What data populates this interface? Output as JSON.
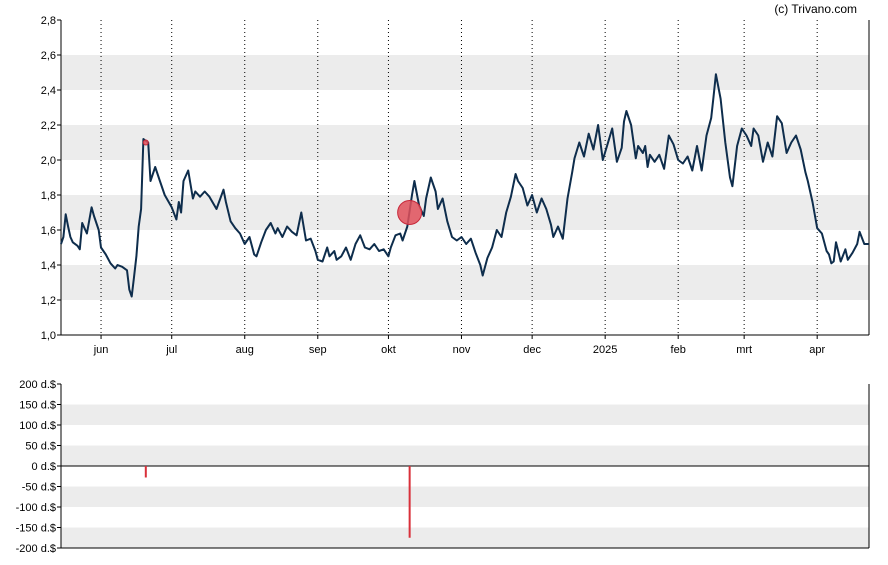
{
  "credit": "(c) Trivano.com",
  "colors": {
    "price_line": "#0e2d4c",
    "band": "#ececec",
    "marker": "#e0505a",
    "marker_stroke": "#c8283a",
    "volume_bar": "#d9303a"
  },
  "chart_data": [
    {
      "type": "line",
      "title": "",
      "xlabel": "",
      "ylabel": "",
      "ylim": [
        1.0,
        2.8
      ],
      "y_ticks": [
        "1,0",
        "1,2",
        "1,4",
        "1,6",
        "1,8",
        "2,0",
        "2,2",
        "2,4",
        "2,6",
        "2,8"
      ],
      "grid": "alternating horizontal bands, dotted vertical month lines",
      "x_start": "2024-05-15",
      "x_end": "2025-04-23",
      "month_ticks": [
        {
          "label": "jun",
          "date": "2024-06-01"
        },
        {
          "label": "jul",
          "date": "2024-07-01"
        },
        {
          "label": "aug",
          "date": "2024-08-01"
        },
        {
          "label": "sep",
          "date": "2024-09-01"
        },
        {
          "label": "okt",
          "date": "2024-10-01"
        },
        {
          "label": "nov",
          "date": "2024-11-01"
        },
        {
          "label": "dec",
          "date": "2024-12-01"
        },
        {
          "label": "2025",
          "date": "2025-01-01"
        },
        {
          "label": "feb",
          "date": "2025-02-01"
        },
        {
          "label": "mrt",
          "date": "2025-03-01"
        },
        {
          "label": "apr",
          "date": "2025-04-01"
        }
      ],
      "series": [
        {
          "points": [
            [
              "2024-05-15",
              1.52
            ],
            [
              "2024-05-16",
              1.56
            ],
            [
              "2024-05-17",
              1.69
            ],
            [
              "2024-05-18",
              1.62
            ],
            [
              "2024-05-19",
              1.56
            ],
            [
              "2024-05-20",
              1.53
            ],
            [
              "2024-05-22",
              1.51
            ],
            [
              "2024-05-23",
              1.49
            ],
            [
              "2024-05-24",
              1.64
            ],
            [
              "2024-05-26",
              1.58
            ],
            [
              "2024-05-28",
              1.73
            ],
            [
              "2024-05-29",
              1.68
            ],
            [
              "2024-05-31",
              1.6
            ],
            [
              "2024-06-01",
              1.5
            ],
            [
              "2024-06-03",
              1.46
            ],
            [
              "2024-06-05",
              1.41
            ],
            [
              "2024-06-07",
              1.38
            ],
            [
              "2024-06-08",
              1.4
            ],
            [
              "2024-06-10",
              1.39
            ],
            [
              "2024-06-12",
              1.37
            ],
            [
              "2024-06-13",
              1.26
            ],
            [
              "2024-06-14",
              1.22
            ],
            [
              "2024-06-15",
              1.33
            ],
            [
              "2024-06-16",
              1.45
            ],
            [
              "2024-06-17",
              1.62
            ],
            [
              "2024-06-18",
              1.72
            ],
            [
              "2024-06-19",
              2.12
            ],
            [
              "2024-06-21",
              2.1
            ],
            [
              "2024-06-22",
              1.88
            ],
            [
              "2024-06-24",
              1.96
            ],
            [
              "2024-06-26",
              1.88
            ],
            [
              "2024-06-28",
              1.8
            ],
            [
              "2024-07-01",
              1.73
            ],
            [
              "2024-07-03",
              1.66
            ],
            [
              "2024-07-04",
              1.76
            ],
            [
              "2024-07-05",
              1.7
            ],
            [
              "2024-07-06",
              1.88
            ],
            [
              "2024-07-08",
              1.94
            ],
            [
              "2024-07-10",
              1.78
            ],
            [
              "2024-07-11",
              1.82
            ],
            [
              "2024-07-13",
              1.79
            ],
            [
              "2024-07-15",
              1.82
            ],
            [
              "2024-07-17",
              1.79
            ],
            [
              "2024-07-20",
              1.72
            ],
            [
              "2024-07-23",
              1.83
            ],
            [
              "2024-07-24",
              1.76
            ],
            [
              "2024-07-26",
              1.65
            ],
            [
              "2024-07-28",
              1.61
            ],
            [
              "2024-07-30",
              1.58
            ],
            [
              "2024-08-01",
              1.52
            ],
            [
              "2024-08-03",
              1.56
            ],
            [
              "2024-08-05",
              1.46
            ],
            [
              "2024-08-06",
              1.45
            ],
            [
              "2024-08-08",
              1.53
            ],
            [
              "2024-08-10",
              1.6
            ],
            [
              "2024-08-12",
              1.64
            ],
            [
              "2024-08-14",
              1.58
            ],
            [
              "2024-08-15",
              1.61
            ],
            [
              "2024-08-17",
              1.56
            ],
            [
              "2024-08-19",
              1.62
            ],
            [
              "2024-08-21",
              1.59
            ],
            [
              "2024-08-23",
              1.57
            ],
            [
              "2024-08-25",
              1.7
            ],
            [
              "2024-08-27",
              1.54
            ],
            [
              "2024-08-29",
              1.55
            ],
            [
              "2024-08-31",
              1.48
            ],
            [
              "2024-09-01",
              1.43
            ],
            [
              "2024-09-03",
              1.42
            ],
            [
              "2024-09-05",
              1.5
            ],
            [
              "2024-09-06",
              1.45
            ],
            [
              "2024-09-08",
              1.48
            ],
            [
              "2024-09-09",
              1.43
            ],
            [
              "2024-09-11",
              1.45
            ],
            [
              "2024-09-13",
              1.5
            ],
            [
              "2024-09-15",
              1.43
            ],
            [
              "2024-09-17",
              1.52
            ],
            [
              "2024-09-19",
              1.57
            ],
            [
              "2024-09-21",
              1.5
            ],
            [
              "2024-09-23",
              1.49
            ],
            [
              "2024-09-25",
              1.52
            ],
            [
              "2024-09-27",
              1.48
            ],
            [
              "2024-09-29",
              1.49
            ],
            [
              "2024-10-01",
              1.45
            ],
            [
              "2024-10-02",
              1.5
            ],
            [
              "2024-10-04",
              1.57
            ],
            [
              "2024-10-06",
              1.58
            ],
            [
              "2024-10-07",
              1.54
            ],
            [
              "2024-10-09",
              1.62
            ],
            [
              "2024-10-11",
              1.8
            ],
            [
              "2024-10-12",
              1.88
            ],
            [
              "2024-10-14",
              1.74
            ],
            [
              "2024-10-16",
              1.68
            ],
            [
              "2024-10-17",
              1.78
            ],
            [
              "2024-10-19",
              1.9
            ],
            [
              "2024-10-21",
              1.82
            ],
            [
              "2024-10-22",
              1.72
            ],
            [
              "2024-10-24",
              1.78
            ],
            [
              "2024-10-26",
              1.65
            ],
            [
              "2024-10-28",
              1.56
            ],
            [
              "2024-10-30",
              1.54
            ],
            [
              "2024-11-01",
              1.56
            ],
            [
              "2024-11-03",
              1.52
            ],
            [
              "2024-11-05",
              1.55
            ],
            [
              "2024-11-07",
              1.47
            ],
            [
              "2024-11-09",
              1.4
            ],
            [
              "2024-11-10",
              1.34
            ],
            [
              "2024-11-12",
              1.44
            ],
            [
              "2024-11-14",
              1.5
            ],
            [
              "2024-11-16",
              1.6
            ],
            [
              "2024-11-18",
              1.56
            ],
            [
              "2024-11-20",
              1.7
            ],
            [
              "2024-11-22",
              1.79
            ],
            [
              "2024-11-24",
              1.92
            ],
            [
              "2024-11-25",
              1.88
            ],
            [
              "2024-11-27",
              1.84
            ],
            [
              "2024-11-29",
              1.74
            ],
            [
              "2024-12-01",
              1.8
            ],
            [
              "2024-12-03",
              1.7
            ],
            [
              "2024-12-05",
              1.78
            ],
            [
              "2024-12-07",
              1.72
            ],
            [
              "2024-12-09",
              1.63
            ],
            [
              "2024-12-10",
              1.56
            ],
            [
              "2024-12-12",
              1.62
            ],
            [
              "2024-12-14",
              1.55
            ],
            [
              "2024-12-16",
              1.78
            ],
            [
              "2024-12-18",
              1.93
            ],
            [
              "2024-12-19",
              2.01
            ],
            [
              "2024-12-21",
              2.1
            ],
            [
              "2024-12-23",
              2.02
            ],
            [
              "2024-12-25",
              2.15
            ],
            [
              "2024-12-27",
              2.06
            ],
            [
              "2024-12-29",
              2.2
            ],
            [
              "2024-12-31",
              2.0
            ],
            [
              "2025-01-02",
              2.09
            ],
            [
              "2025-01-04",
              2.18
            ],
            [
              "2025-01-06",
              1.99
            ],
            [
              "2025-01-08",
              2.07
            ],
            [
              "2025-01-09",
              2.22
            ],
            [
              "2025-01-10",
              2.28
            ],
            [
              "2025-01-12",
              2.2
            ],
            [
              "2025-01-14",
              2.01
            ],
            [
              "2025-01-15",
              2.08
            ],
            [
              "2025-01-17",
              2.04
            ],
            [
              "2025-01-18",
              2.08
            ],
            [
              "2025-01-19",
              1.96
            ],
            [
              "2025-01-20",
              2.03
            ],
            [
              "2025-01-22",
              1.99
            ],
            [
              "2025-01-24",
              2.03
            ],
            [
              "2025-01-26",
              1.95
            ],
            [
              "2025-01-28",
              2.14
            ],
            [
              "2025-01-30",
              2.09
            ],
            [
              "2025-02-01",
              2.0
            ],
            [
              "2025-02-03",
              1.98
            ],
            [
              "2025-02-05",
              2.02
            ],
            [
              "2025-02-07",
              1.94
            ],
            [
              "2025-02-09",
              2.08
            ],
            [
              "2025-02-11",
              1.94
            ],
            [
              "2025-02-13",
              2.14
            ],
            [
              "2025-02-15",
              2.24
            ],
            [
              "2025-02-16",
              2.36
            ],
            [
              "2025-02-17",
              2.49
            ],
            [
              "2025-02-19",
              2.35
            ],
            [
              "2025-02-21",
              2.1
            ],
            [
              "2025-02-23",
              1.9
            ],
            [
              "2025-02-24",
              1.85
            ],
            [
              "2025-02-26",
              2.08
            ],
            [
              "2025-02-28",
              2.18
            ],
            [
              "2025-03-02",
              2.14
            ],
            [
              "2025-03-04",
              2.08
            ],
            [
              "2025-03-05",
              2.18
            ],
            [
              "2025-03-07",
              2.14
            ],
            [
              "2025-03-09",
              1.99
            ],
            [
              "2025-03-11",
              2.1
            ],
            [
              "2025-03-13",
              2.02
            ],
            [
              "2025-03-15",
              2.25
            ],
            [
              "2025-03-17",
              2.21
            ],
            [
              "2025-03-19",
              2.04
            ],
            [
              "2025-03-21",
              2.1
            ],
            [
              "2025-03-23",
              2.14
            ],
            [
              "2025-03-25",
              2.06
            ],
            [
              "2025-03-27",
              1.93
            ],
            [
              "2025-03-28",
              1.88
            ],
            [
              "2025-03-30",
              1.76
            ],
            [
              "2025-04-01",
              1.61
            ],
            [
              "2025-04-03",
              1.58
            ],
            [
              "2025-04-05",
              1.48
            ],
            [
              "2025-04-06",
              1.46
            ],
            [
              "2025-04-07",
              1.41
            ],
            [
              "2025-04-08",
              1.42
            ],
            [
              "2025-04-09",
              1.53
            ],
            [
              "2025-04-11",
              1.42
            ],
            [
              "2025-04-13",
              1.49
            ],
            [
              "2025-04-14",
              1.43
            ],
            [
              "2025-04-16",
              1.47
            ],
            [
              "2025-04-18",
              1.52
            ],
            [
              "2025-04-19",
              1.59
            ],
            [
              "2025-04-21",
              1.52
            ],
            [
              "2025-04-23",
              1.52
            ]
          ]
        }
      ],
      "markers": [
        {
          "date": "2024-06-20",
          "value": 2.1,
          "size": "small"
        },
        {
          "date": "2024-10-10",
          "value": 1.7,
          "size": "large"
        }
      ]
    },
    {
      "type": "bar",
      "title": "",
      "xlabel": "",
      "ylabel": "",
      "ylim": [
        -200,
        200
      ],
      "y_ticks": [
        "200 d.$",
        "150 d.$",
        "100 d.$",
        "50 d.$",
        "0 d.$",
        "-50 d.$",
        "-100 d.$",
        "-150 d.$",
        "-200 d.$"
      ],
      "y_tick_values": [
        200,
        150,
        100,
        50,
        0,
        -50,
        -100,
        -150,
        -200
      ],
      "grid": "alternating horizontal bands",
      "bars": [
        {
          "date": "2024-06-20",
          "value": -28
        },
        {
          "date": "2024-10-10",
          "value": -175
        }
      ]
    }
  ]
}
